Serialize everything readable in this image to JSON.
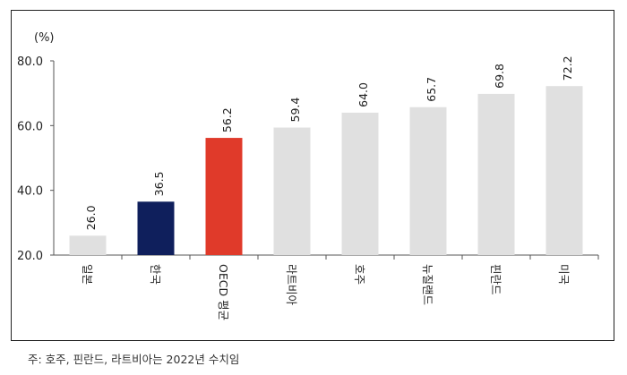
{
  "chart_data": {
    "type": "bar",
    "unit_label": "(%)",
    "categories": [
      "일본",
      "한국",
      "OECD 평균",
      "라트비아",
      "호주",
      "뉴질랜드",
      "핀란드",
      "미국"
    ],
    "values": [
      26.0,
      36.5,
      56.2,
      59.4,
      64.0,
      65.7,
      69.8,
      72.2
    ],
    "value_labels": [
      "26.0",
      "36.5",
      "56.2",
      "59.4",
      "64.0",
      "65.7",
      "69.8",
      "72.2"
    ],
    "bar_colors": [
      "#e0e0e0",
      "#0f1f5c",
      "#e03a2a",
      "#e0e0e0",
      "#e0e0e0",
      "#e0e0e0",
      "#e0e0e0",
      "#e0e0e0"
    ],
    "ylim": [
      20.0,
      80.0
    ],
    "yticks": [
      "20.0",
      "40.0",
      "60.0",
      "80.0"
    ],
    "ytick_values": [
      20,
      40,
      60,
      80
    ],
    "grid": false,
    "legend": "none"
  },
  "footnote": "주: 호주, 핀란드, 라트비아는 2022년 수치임"
}
